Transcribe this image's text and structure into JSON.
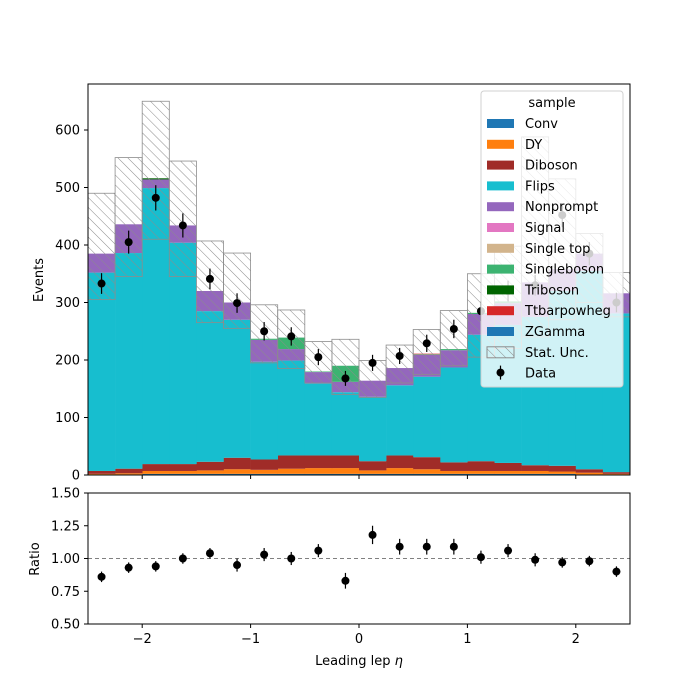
{
  "chart_data": [
    {
      "type": "bar",
      "xlabel": "",
      "ylabel": "Events",
      "ylim": [
        0,
        680
      ],
      "xlim": [
        -2.5,
        2.5
      ],
      "yticks": [
        0,
        100,
        200,
        300,
        400,
        500,
        600
      ],
      "bin_edges": [
        -2.5,
        -2.25,
        -2.0,
        -1.75,
        -1.5,
        -1.25,
        -1.0,
        -0.75,
        -0.5,
        -0.25,
        0.0,
        0.25,
        0.5,
        0.75,
        1.0,
        1.25,
        1.5,
        1.75,
        2.0,
        2.25,
        2.5
      ],
      "legend": {
        "title": "sample",
        "placement": "top-right",
        "entries": [
          "Conv",
          "DY",
          "Diboson",
          "Flips",
          "Nonprompt",
          "Signal",
          "Single top",
          "Singleboson",
          "Triboson",
          "Ttbarpowheg",
          "ZGamma",
          "Stat. Unc.",
          "Data"
        ]
      },
      "colors": {
        "Conv": "#1f77b4",
        "DY": "#ff7f0e",
        "Diboson": "#a02c28",
        "Flips": "#17becf",
        "Nonprompt": "#9467bd",
        "Signal": "#e377c2",
        "Single top": "#d2b48c",
        "Singleboson": "#3cb371",
        "Triboson": "#006400",
        "Ttbarpowheg": "#d62728",
        "ZGamma": "#1f77b4"
      },
      "series": [
        {
          "name": "Conv",
          "values": [
            1,
            1,
            2,
            2,
            2,
            2,
            2,
            2,
            2,
            2,
            2,
            2,
            2,
            2,
            2,
            2,
            2,
            2,
            1,
            1
          ]
        },
        {
          "name": "DY",
          "values": [
            1,
            2,
            5,
            5,
            6,
            8,
            7,
            9,
            10,
            10,
            6,
            10,
            8,
            5,
            5,
            5,
            5,
            4,
            3,
            1
          ]
        },
        {
          "name": "Diboson",
          "values": [
            5,
            8,
            12,
            12,
            15,
            20,
            18,
            23,
            22,
            22,
            16,
            22,
            21,
            15,
            17,
            14,
            10,
            10,
            6,
            3
          ]
        },
        {
          "name": "Flips",
          "values": [
            345,
            375,
            480,
            385,
            262,
            240,
            170,
            165,
            125,
            110,
            112,
            122,
            140,
            165,
            220,
            240,
            258,
            304,
            345,
            276
          ]
        },
        {
          "name": "Nonprompt",
          "values": [
            33,
            50,
            15,
            30,
            35,
            30,
            38,
            20,
            20,
            18,
            28,
            30,
            38,
            30,
            36,
            38,
            60,
            38,
            30,
            35
          ]
        },
        {
          "name": "Signal",
          "values": [
            0,
            0,
            0,
            0,
            0,
            0,
            0,
            0,
            0,
            0,
            0,
            0,
            0,
            0,
            0,
            0,
            0,
            0,
            0,
            0
          ]
        },
        {
          "name": "Single top",
          "values": [
            0,
            0,
            0,
            0,
            0,
            0,
            0,
            0,
            0,
            0,
            0,
            0,
            0,
            0,
            0,
            0,
            0,
            0,
            0,
            0
          ]
        },
        {
          "name": "Singleboson",
          "values": [
            0,
            0,
            0,
            0,
            0,
            0,
            2,
            20,
            1,
            28,
            0,
            0,
            1,
            2,
            2,
            3,
            0,
            0,
            0,
            0
          ]
        },
        {
          "name": "Triboson",
          "values": [
            0,
            0,
            2,
            0,
            0,
            0,
            0,
            0,
            0,
            0,
            0,
            0,
            0,
            0,
            0,
            0,
            0,
            0,
            0,
            0
          ]
        },
        {
          "name": "Ttbarpowheg",
          "values": [
            0,
            0,
            0,
            0,
            0,
            0,
            0,
            0,
            0,
            0,
            0,
            0,
            1,
            0,
            0,
            0,
            0,
            0,
            0,
            0
          ]
        },
        {
          "name": "ZGamma",
          "values": [
            0,
            0,
            0,
            0,
            0,
            0,
            0,
            0,
            0,
            0,
            0,
            0,
            0,
            0,
            0,
            0,
            0,
            0,
            0,
            0
          ]
        }
      ],
      "stat_unc": {
        "name": "Stat. Unc.",
        "low": [
          305,
          345,
          410,
          345,
          265,
          255,
          195,
          185,
          160,
          140,
          135,
          160,
          175,
          190,
          205,
          220,
          240,
          270,
          300,
          275
        ],
        "high": [
          490,
          552,
          650,
          546,
          407,
          386,
          296,
          287,
          232,
          236,
          199,
          226,
          253,
          286,
          350,
          398,
          588,
          515,
          420,
          352
        ]
      },
      "data": {
        "name": "Data",
        "x": [
          -2.375,
          -2.125,
          -1.875,
          -1.625,
          -1.375,
          -1.125,
          -0.875,
          -0.625,
          -0.375,
          -0.125,
          0.125,
          0.375,
          0.625,
          0.875,
          1.125,
          1.375,
          1.625,
          1.875,
          2.125,
          2.375
        ],
        "y": [
          333,
          405,
          482,
          434,
          341,
          299,
          250,
          241,
          205,
          168,
          195,
          207,
          229,
          254,
          285,
          320,
          330,
          452,
          385,
          300
        ],
        "err": [
          18,
          20,
          22,
          21,
          18,
          17,
          16,
          16,
          14,
          13,
          14,
          14,
          15,
          16,
          17,
          18,
          18,
          21,
          20,
          17
        ]
      }
    },
    {
      "type": "scatter",
      "xlabel": "Leading lep $\\eta$",
      "ylabel": "Ratio",
      "ylim": [
        0.5,
        1.5
      ],
      "xlim": [
        -2.5,
        2.5
      ],
      "yticks": [
        "0.50",
        "0.75",
        "1.00",
        "1.25",
        "1.50"
      ],
      "xticks": [
        "-2",
        "-1",
        "0",
        "1",
        "2"
      ],
      "reference_line": 1.0,
      "x": [
        -2.375,
        -2.125,
        -1.875,
        -1.625,
        -1.375,
        -1.125,
        -0.875,
        -0.625,
        -0.375,
        -0.125,
        0.125,
        0.375,
        0.625,
        0.875,
        1.125,
        1.375,
        1.625,
        1.875,
        2.125,
        2.375
      ],
      "y": [
        0.86,
        0.93,
        0.94,
        1.0,
        1.04,
        0.95,
        1.03,
        1.0,
        1.06,
        0.83,
        1.18,
        1.09,
        1.09,
        1.09,
        1.01,
        1.06,
        0.99,
        0.97,
        0.98,
        0.9
      ],
      "err": [
        0.04,
        0.04,
        0.04,
        0.04,
        0.04,
        0.05,
        0.05,
        0.05,
        0.05,
        0.06,
        0.07,
        0.06,
        0.06,
        0.06,
        0.05,
        0.05,
        0.05,
        0.04,
        0.04,
        0.04
      ]
    }
  ]
}
